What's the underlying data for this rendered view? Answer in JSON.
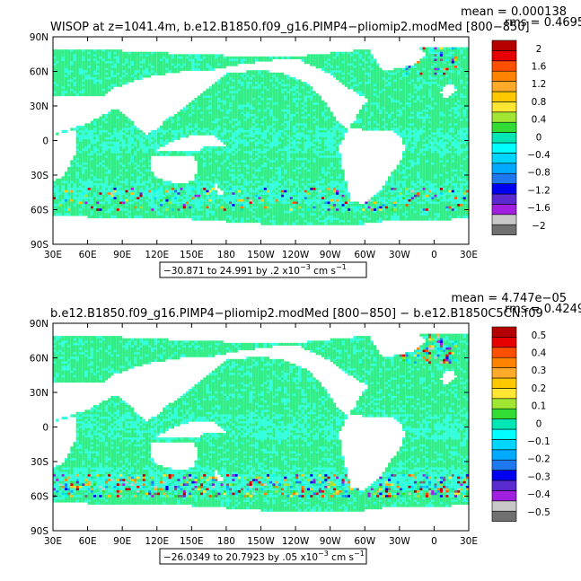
{
  "colorbar_colors": [
    "#707070",
    "#c8c8c8",
    "#a01fe0",
    "#5a2ad0",
    "#0000f0",
    "#1e78f0",
    "#00aaff",
    "#00d6ff",
    "#00ffff",
    "#00e6b4",
    "#32dc32",
    "#a0e632",
    "#ffe632",
    "#ffc800",
    "#ffaa28",
    "#ff8200",
    "#ff5000",
    "#e60000",
    "#b40000"
  ],
  "ocean_colors": {
    "base": "#33ee88",
    "alt": "#33ffdd",
    "mid": "#55ddaa"
  },
  "chart_data": [
    {
      "type": "heatmap",
      "title_left": "WISOP at z=1041.4m, b.e12.B1850.f09_g16.PIMP4−pliomip2.modMed [800−850]",
      "mean_label": "mean = 0.000138",
      "rms_label": "rms = 0.4695",
      "xticks": [
        "30E",
        "60E",
        "90E",
        "120E",
        "150E",
        "180",
        "150W",
        "120W",
        "90W",
        "60W",
        "30W",
        "0",
        "30E"
      ],
      "yticks": [
        "90N",
        "60N",
        "30N",
        "0",
        "30S",
        "60S",
        "90S"
      ],
      "colorbar_labels": [
        "2",
        "1.6",
        "1.2",
        "0.8",
        "0.4",
        "0",
        "−0.4",
        "−0.8",
        "−1.2",
        "−1.6",
        "−2"
      ],
      "range_text": "−30.871 to 24.991 by .2 x10",
      "range_exp": "−3",
      "range_unit": " cm s",
      "range_unit_exp": "−1",
      "data_min": -30.871,
      "data_max": 24.991,
      "contour_interval": 0.2,
      "scale": "x10^-3",
      "units": "cm s-1",
      "xlim": [
        "30E",
        "30E"
      ],
      "ylim": [
        "90S",
        "90N"
      ],
      "colorbar_levels": [
        -2,
        -1.8,
        -1.6,
        -1.4,
        -1.2,
        -1.0,
        -0.8,
        -0.6,
        -0.4,
        -0.2,
        0,
        0.2,
        0.4,
        0.6,
        0.8,
        1.0,
        1.2,
        1.4,
        1.6,
        1.8,
        2
      ],
      "noise": 0.15
    },
    {
      "type": "heatmap",
      "title_left": "b.e12.B1850.f09_g16.PIMP4−pliomip2.modMed [800−850] − b.e12.B1850C5CN.f09",
      "mean_label": "mean = 4.747e−05",
      "rms_label": "rms = 0.4249",
      "xticks": [
        "30E",
        "60E",
        "90E",
        "120E",
        "150E",
        "180",
        "150W",
        "120W",
        "90W",
        "60W",
        "30W",
        "0",
        "30E"
      ],
      "yticks": [
        "90N",
        "60N",
        "30N",
        "0",
        "30S",
        "60S",
        "90S"
      ],
      "colorbar_labels": [
        "0.5",
        "0.4",
        "0.3",
        "0.2",
        "0.1",
        "0",
        "−0.1",
        "−0.2",
        "−0.3",
        "−0.4",
        "−0.5"
      ],
      "range_text": "−26.0349 to 20.7923 by .05 x10",
      "range_exp": "−3",
      "range_unit": " cm s",
      "range_unit_exp": "−1",
      "data_min": -26.0349,
      "data_max": 20.7923,
      "contour_interval": 0.05,
      "scale": "x10^-3",
      "units": "cm s-1",
      "xlim": [
        "30E",
        "30E"
      ],
      "ylim": [
        "90S",
        "90N"
      ],
      "colorbar_levels": [
        -0.5,
        -0.45,
        -0.4,
        -0.35,
        -0.3,
        -0.25,
        -0.2,
        -0.15,
        -0.1,
        -0.05,
        0,
        0.05,
        0.1,
        0.15,
        0.2,
        0.25,
        0.3,
        0.35,
        0.4,
        0.45,
        0.5
      ],
      "noise": 0.35
    }
  ]
}
